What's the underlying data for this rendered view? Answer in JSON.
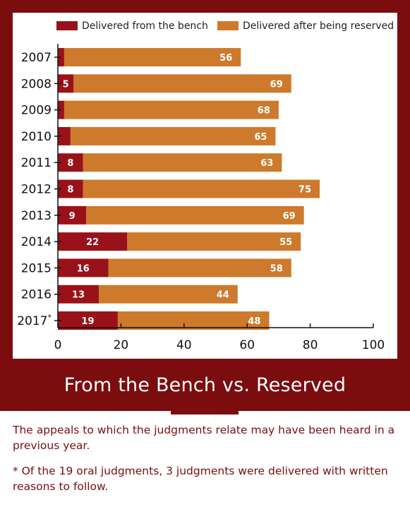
{
  "colors": {
    "frame": "#7b0d0f",
    "bench": "#9a1219",
    "reserved": "#cd7a2c",
    "note_text": "#7b0d0f"
  },
  "title": "From the Bench vs. Reserved",
  "notes": [
    "The appeals to which the judgments relate may have been heard in a previous year.",
    "* Of the 19 oral judgments, 3 judgments were delivered with written reasons to follow."
  ],
  "chart_data": {
    "type": "bar",
    "orientation": "horizontal",
    "stacked": true,
    "categories": [
      "2007",
      "2008",
      "2009",
      "2010",
      "2011",
      "2012",
      "2013",
      "2014",
      "2015",
      "2016",
      "2017*"
    ],
    "series": [
      {
        "name": "Delivered from the bench",
        "color": "#9a1219",
        "values": [
          2,
          5,
          2,
          4,
          8,
          8,
          9,
          22,
          16,
          13,
          19
        ]
      },
      {
        "name": "Delivered after being reserved",
        "color": "#cd7a2c",
        "values": [
          56,
          69,
          68,
          65,
          63,
          75,
          69,
          55,
          58,
          44,
          48
        ]
      }
    ],
    "xlim": [
      0,
      100
    ],
    "xticks": [
      0,
      20,
      40,
      60,
      80,
      100
    ],
    "legend_position": "top",
    "grid": false
  }
}
